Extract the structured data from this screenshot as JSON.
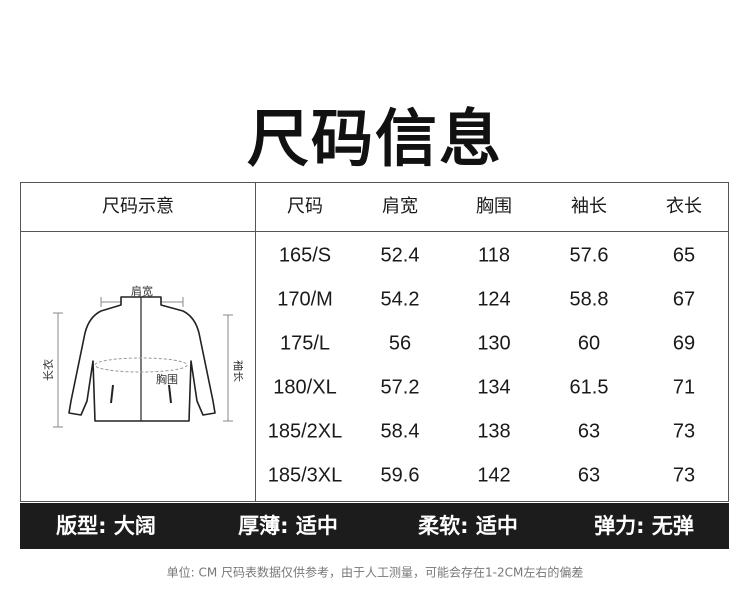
{
  "title": "尺码信息",
  "table": {
    "diagram_header": "尺码示意",
    "headers": [
      "尺码",
      "肩宽",
      "胸围",
      "袖长",
      "衣长"
    ],
    "rows": [
      [
        "165/S",
        "52.4",
        "118",
        "57.6",
        "65"
      ],
      [
        "170/M",
        "54.2",
        "124",
        "58.8",
        "67"
      ],
      [
        "175/L",
        "56",
        "130",
        "60",
        "69"
      ],
      [
        "180/XL",
        "57.2",
        "134",
        "61.5",
        "71"
      ],
      [
        "185/2XL",
        "58.4",
        "138",
        "63",
        "73"
      ],
      [
        "185/3XL",
        "59.6",
        "142",
        "63",
        "73"
      ]
    ]
  },
  "diagram": {
    "shoulder_label": "肩宽",
    "chest_label": "胸围",
    "length_label": "长衣",
    "sleeve_label": "袖长"
  },
  "footer": {
    "items": [
      "版型: 大阔",
      "厚薄: 适中",
      "柔软: 适中",
      "弹力: 无弹"
    ]
  },
  "note": "单位: CM    尺码表数据仅供参考，由于人工测量，可能会存在1-2CM左右的偏差"
}
